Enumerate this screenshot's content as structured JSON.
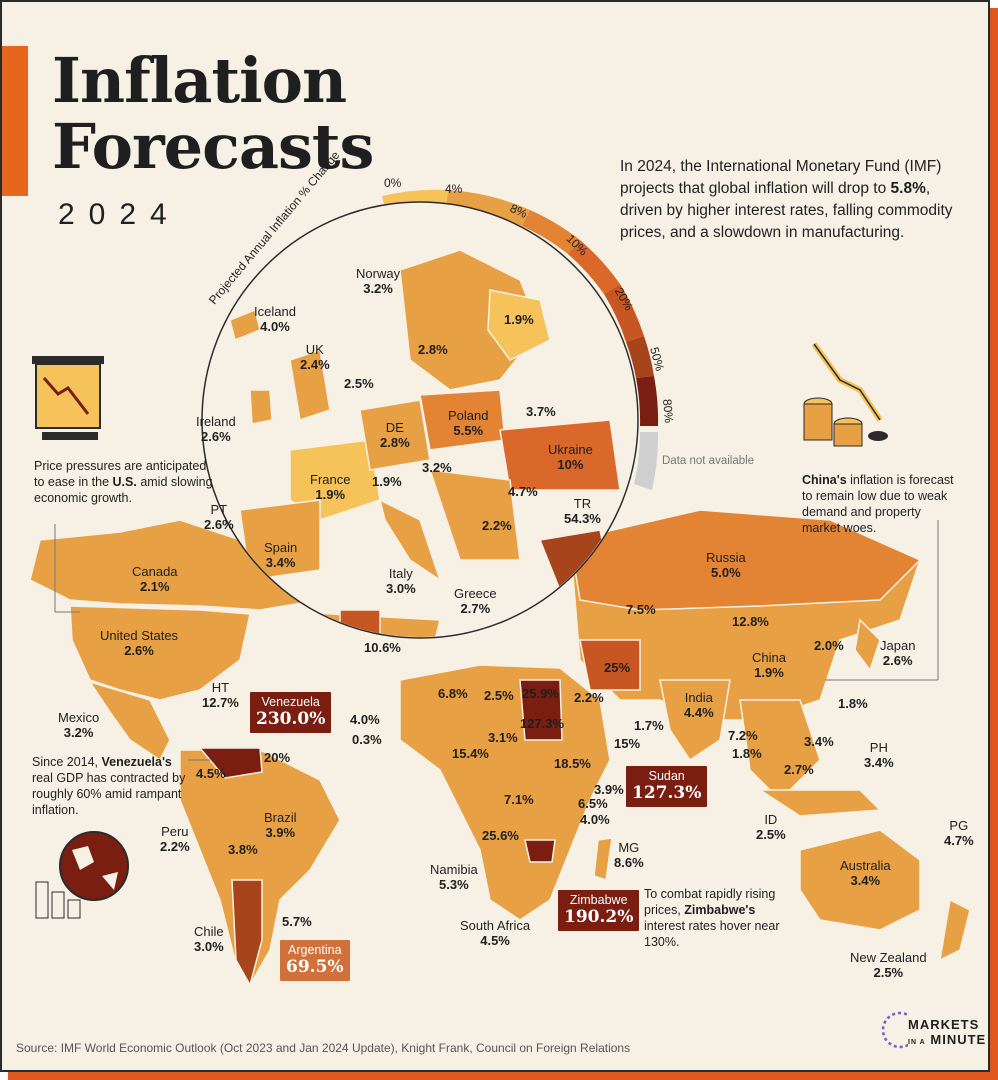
{
  "header": {
    "title_line1": "Inflation",
    "title_line2": "Forecasts",
    "year": "2024",
    "intro_p1": "In 2024, the International Monetary Fund (IMF) projects that global inflation will drop to ",
    "intro_bold": "5.8%",
    "intro_p2": ", driven by higher interest rates, falling commodity prices, and a slowdown in manufacturing."
  },
  "legend": {
    "title": "Projected Annual Inflation % Change",
    "ticks": [
      "0%",
      "4%",
      "8%",
      "10%",
      "20%",
      "50%",
      "80%"
    ],
    "na_label": "Data not available",
    "colors": [
      "#f6c25a",
      "#e8a045",
      "#e38435",
      "#d9682a",
      "#c85622",
      "#a8441c",
      "#7a1e12",
      "#cfcfcf"
    ]
  },
  "europe": [
    {
      "name": "Norway",
      "value": "3.2%"
    },
    {
      "name": "Iceland",
      "value": "4.0%"
    },
    {
      "name": "UK",
      "value": "2.4%"
    },
    {
      "name": "",
      "value": "2.8%"
    },
    {
      "name": "",
      "value": "1.9%"
    },
    {
      "name": "",
      "value": "2.5%"
    },
    {
      "name": "Ireland",
      "value": "2.6%"
    },
    {
      "name": "DE",
      "value": "2.8%"
    },
    {
      "name": "Poland",
      "value": "5.5%"
    },
    {
      "name": "",
      "value": "3.7%"
    },
    {
      "name": "Ukraine",
      "value": "10%"
    },
    {
      "name": "France",
      "value": "1.9%"
    },
    {
      "name": "",
      "value": "1.9%"
    },
    {
      "name": "",
      "value": "3.2%"
    },
    {
      "name": "",
      "value": "4.7%"
    },
    {
      "name": "TR",
      "value": "54.3%"
    },
    {
      "name": "PT",
      "value": "2.6%"
    },
    {
      "name": "",
      "value": "2.2%"
    },
    {
      "name": "Spain",
      "value": "3.4%"
    },
    {
      "name": "Italy",
      "value": "3.0%"
    },
    {
      "name": "Greece",
      "value": "2.7%"
    },
    {
      "name": "",
      "value": "10.6%"
    }
  ],
  "world": [
    {
      "name": "Canada",
      "value": "2.1%"
    },
    {
      "name": "United States",
      "value": "2.6%"
    },
    {
      "name": "Russia",
      "value": "5.0%"
    },
    {
      "name": "",
      "value": "7.5%"
    },
    {
      "name": "",
      "value": "12.8%"
    },
    {
      "name": "Japan",
      "value": "2.6%"
    },
    {
      "name": "",
      "value": "2.0%"
    },
    {
      "name": "China",
      "value": "1.9%"
    },
    {
      "name": "",
      "value": "25%"
    },
    {
      "name": "India",
      "value": "4.4%"
    },
    {
      "name": "",
      "value": "1.8%"
    },
    {
      "name": "Mexico",
      "value": "3.2%"
    },
    {
      "name": "HT",
      "value": "12.7%"
    },
    {
      "name": "",
      "value": "6.8%"
    },
    {
      "name": "",
      "value": "2.5%"
    },
    {
      "name": "",
      "value": "25.9%"
    },
    {
      "name": "",
      "value": "127.3%"
    },
    {
      "name": "",
      "value": "2.2%"
    },
    {
      "name": "",
      "value": "4.0%"
    },
    {
      "name": "",
      "value": "0.3%"
    },
    {
      "name": "",
      "value": "3.1%"
    },
    {
      "name": "",
      "value": "15.4%"
    },
    {
      "name": "",
      "value": "18.5%"
    },
    {
      "name": "",
      "value": "1.7%"
    },
    {
      "name": "",
      "value": "15%"
    },
    {
      "name": "",
      "value": "7.2%"
    },
    {
      "name": "",
      "value": "1.8%"
    },
    {
      "name": "",
      "value": "3.4%"
    },
    {
      "name": "",
      "value": "2.7%"
    },
    {
      "name": "PH",
      "value": "3.4%"
    },
    {
      "name": "",
      "value": "4.5%"
    },
    {
      "name": "",
      "value": "20%"
    },
    {
      "name": "Brazil",
      "value": "3.9%"
    },
    {
      "name": "Peru",
      "value": "2.2%"
    },
    {
      "name": "",
      "value": "3.8%"
    },
    {
      "name": "",
      "value": "7.1%"
    },
    {
      "name": "",
      "value": "3.9%"
    },
    {
      "name": "",
      "value": "6.5%"
    },
    {
      "name": "",
      "value": "4.0%"
    },
    {
      "name": "",
      "value": "25.6%"
    },
    {
      "name": "MG",
      "value": "8.6%"
    },
    {
      "name": "ID",
      "value": "2.5%"
    },
    {
      "name": "PG",
      "value": "4.7%"
    },
    {
      "name": "Australia",
      "value": "3.4%"
    },
    {
      "name": "Namibia",
      "value": "5.3%"
    },
    {
      "name": "",
      "value": "5.7%"
    },
    {
      "name": "Chile",
      "value": "3.0%"
    },
    {
      "name": "South Africa",
      "value": "4.5%"
    },
    {
      "name": "New Zealand",
      "value": "2.5%"
    }
  ],
  "highlights": {
    "venezuela": {
      "name": "Venezuela",
      "value": "230.0%"
    },
    "sudan": {
      "name": "Sudan",
      "value": "127.3%"
    },
    "zimbabwe": {
      "name": "Zimbabwe",
      "value": "190.2%"
    },
    "argentina": {
      "name": "Argentina",
      "value": "69.5%"
    }
  },
  "notes": {
    "us_p1": "Price pressures are anticipated to ease in the ",
    "us_bold": "U.S.",
    "us_p2": " amid slowing economic growth.",
    "china_bold": "China's",
    "china_p2": " inflation is forecast to remain low due to weak demand and property market woes.",
    "ven_p1": "Since 2014, ",
    "ven_bold": "Venezuela's",
    "ven_p2": " real GDP has contracted by roughly 60% amid rampant inflation.",
    "zim_p1": "To combat rapidly rising prices, ",
    "zim_bold": "Zimbabwe's",
    "zim_p2": " interest rates hover near 130%."
  },
  "footer": {
    "source": "Source: IMF World Economic Outlook (Oct 2023 and Jan 2024 Update), Knight Frank, Council on Foreign Relations",
    "brand_line1": "MARKETS",
    "brand_small": "IN A",
    "brand_line2": "MINUTE"
  }
}
